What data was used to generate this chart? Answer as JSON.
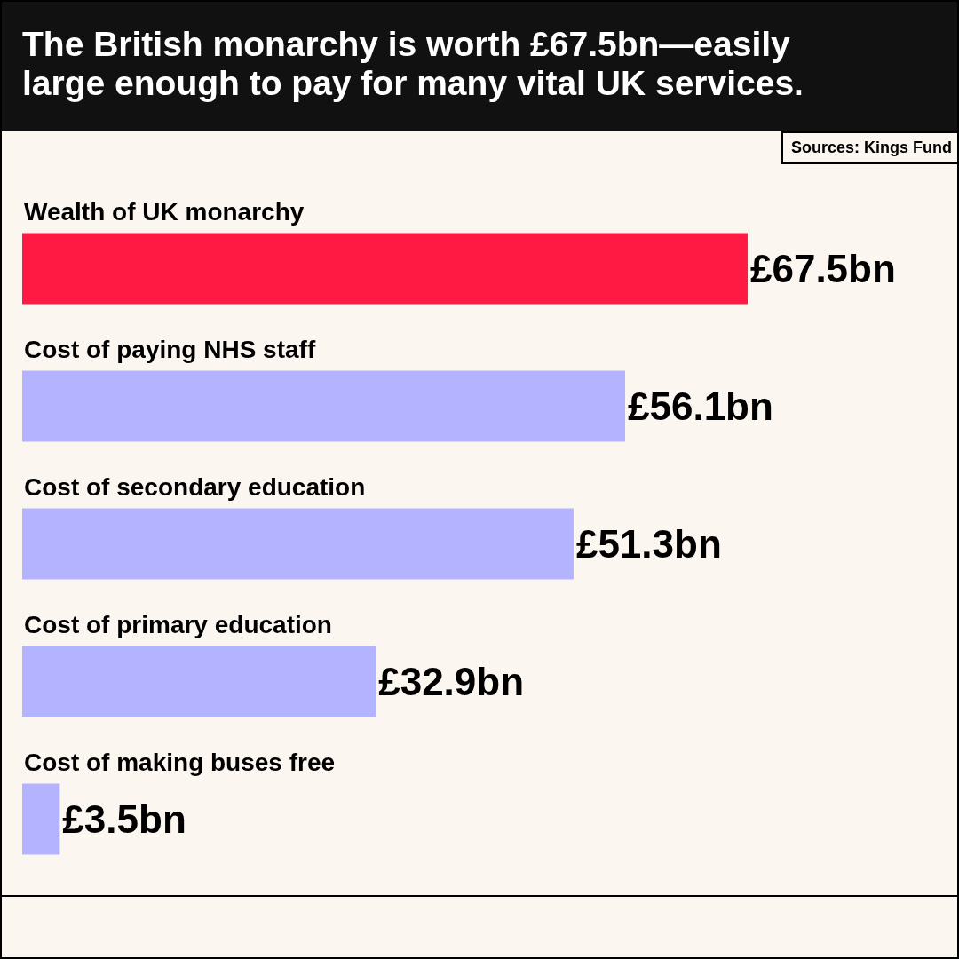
{
  "chart_data": {
    "type": "bar",
    "orientation": "horizontal",
    "title": "The British monarchy is worth £67.5bn—easily large enough to pay for many vital UK services.",
    "annotations": [
      "Sources: Kings Fund"
    ],
    "categories": [
      "Wealth of UK monarchy",
      "Cost of paying NHS staff",
      "Cost of secondary education",
      "Cost of primary education",
      "Cost of making buses free"
    ],
    "values": [
      67.5,
      56.1,
      51.3,
      32.9,
      3.5
    ],
    "colors": [
      "#ff1a44",
      "#b3b3ff",
      "#b3b3ff",
      "#b3b3ff",
      "#b3b3ff"
    ],
    "value_labels": [
      "£67.5bn",
      "£56.1bn",
      "£51.3bn",
      "£32.9bn",
      "£3.5bn"
    ],
    "xlim": [
      0,
      87
    ],
    "tick_labels": false
  }
}
